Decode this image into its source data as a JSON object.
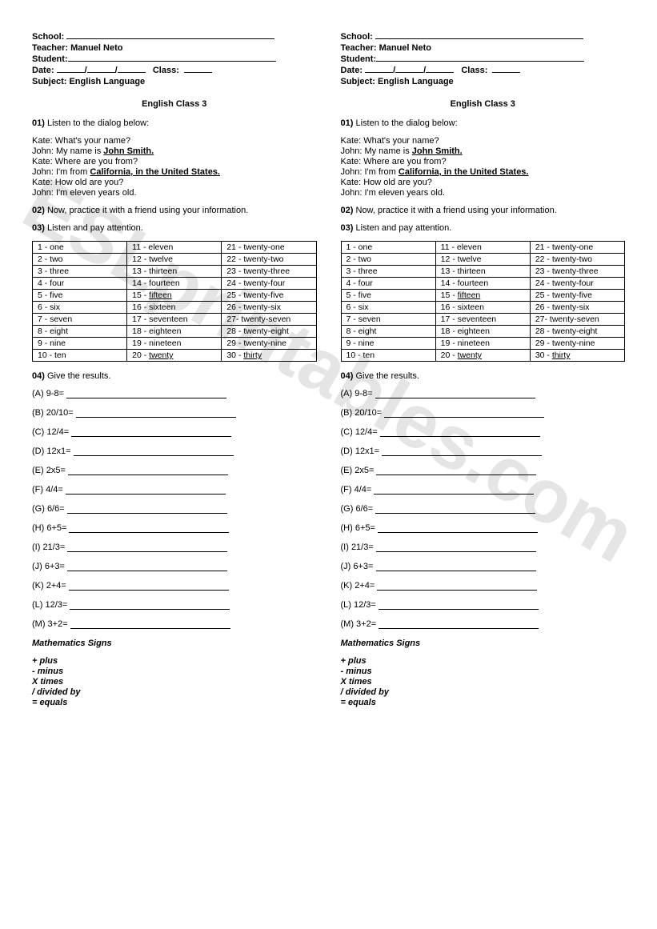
{
  "watermark": "ESLprintables.com",
  "header": {
    "school_label": "School:",
    "teacher_label": "Teacher:",
    "teacher_value": "Manuel Neto",
    "student_label": "Student:",
    "date_label": "Date:",
    "class_label": "Class:",
    "subject_label": "Subject:",
    "subject_value": "English Language"
  },
  "title": "English Class 3",
  "q01": {
    "label": "01)",
    "text": "Listen to the dialog below:",
    "lines": [
      {
        "speaker": "Kate:",
        "text": "What's your name?"
      },
      {
        "speaker": "John:",
        "prefix": "My name is ",
        "emph": "John Smith."
      },
      {
        "speaker": "Kate:",
        "text": "Where are you from?"
      },
      {
        "speaker": "John:",
        "prefix": "I'm from ",
        "emph": "California, in the United States."
      },
      {
        "speaker": "Kate:",
        "text": "How old are you?"
      },
      {
        "speaker": "John:",
        "text": "I'm eleven years old."
      }
    ]
  },
  "q02": {
    "label": "02)",
    "text": "Now, practice it with a friend using your information."
  },
  "q03": {
    "label": "03)",
    "text": "Listen and pay attention.",
    "table": [
      [
        "1 - one",
        "11 - eleven",
        "21 - twenty-one"
      ],
      [
        "2 - two",
        "12 - twelve",
        "22 - twenty-two"
      ],
      [
        "3 - three",
        "13 - thirteen",
        "23 - twenty-three"
      ],
      [
        "4 - four",
        "14 - fourteen",
        "24 - twenty-four"
      ],
      [
        "5 - five",
        "15 - ",
        "25 - twenty-five"
      ],
      [
        "6 - six",
        "16 - sixteen",
        "26 - twenty-six"
      ],
      [
        "7 - seven",
        "17 - seventeen",
        "27- twenty-seven"
      ],
      [
        "8 - eight",
        "18 - eighteen",
        "28 - twenty-eight"
      ],
      [
        "9 - nine",
        "19 - nineteen",
        "29 - twenty-nine"
      ],
      [
        "10 - ten",
        "20 - ",
        "30 - "
      ]
    ],
    "underlines": {
      "4-1": "fifteen",
      "9-1": "twenty",
      "9-2": "thirty"
    }
  },
  "q04": {
    "label": "04)",
    "text": "Give the results.",
    "items": [
      {
        "letter": "(A)",
        "expr": "9-8="
      },
      {
        "letter": "(B)",
        "expr": "20/10="
      },
      {
        "letter": "(C)",
        "expr": "12/4="
      },
      {
        "letter": "(D)",
        "expr": "12x1="
      },
      {
        "letter": "(E)",
        "expr": "2x5="
      },
      {
        "letter": "(F)",
        "expr": "4/4="
      },
      {
        "letter": "(G)",
        "expr": "6/6="
      },
      {
        "letter": "(H)",
        "expr": "6+5="
      },
      {
        "letter": "(I)",
        "expr": "21/3="
      },
      {
        "letter": "(J)",
        "expr": "6+3="
      },
      {
        "letter": "(K)",
        "expr": "2+4="
      },
      {
        "letter": "(L)",
        "expr": "12/3="
      },
      {
        "letter": "(M)",
        "expr": "3+2="
      }
    ]
  },
  "math": {
    "title": "Mathematics Signs",
    "signs": [
      "+ plus",
      "- minus",
      "X times",
      "/ divided by",
      "= equals"
    ]
  }
}
